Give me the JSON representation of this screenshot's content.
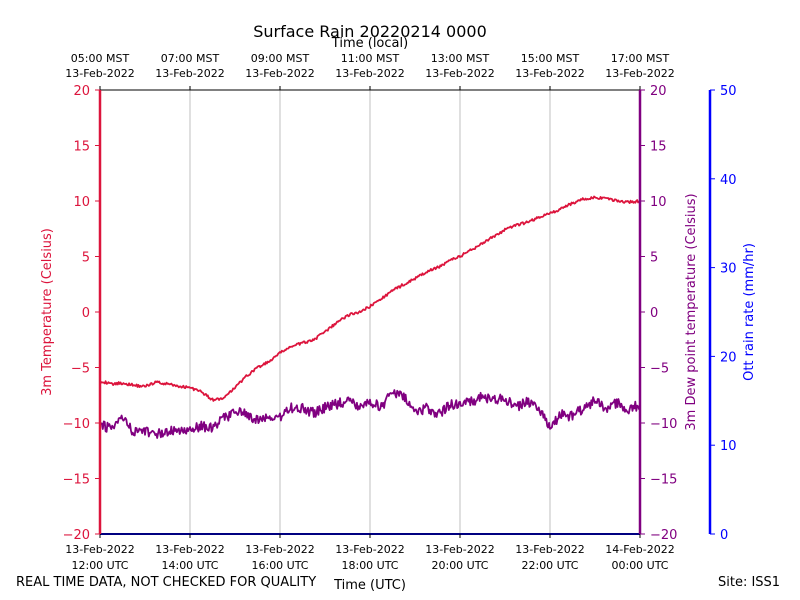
{
  "chart_data": {
    "type": "line",
    "title": "Surface Rain 20220214 0000",
    "top_axis_label": "Time (local)",
    "xlabel": "Time (UTC)",
    "x_range_hours": [
      12,
      24
    ],
    "x_ticks": [
      12,
      14,
      16,
      18,
      20,
      22,
      24
    ],
    "x_tick_labels_utc": [
      [
        "13-Feb-2022",
        "12:00 UTC"
      ],
      [
        "13-Feb-2022",
        "14:00 UTC"
      ],
      [
        "13-Feb-2022",
        "16:00 UTC"
      ],
      [
        "13-Feb-2022",
        "18:00 UTC"
      ],
      [
        "13-Feb-2022",
        "20:00 UTC"
      ],
      [
        "13-Feb-2022",
        "22:00 UTC"
      ],
      [
        "14-Feb-2022",
        "00:00 UTC"
      ]
    ],
    "x_tick_labels_local": [
      [
        "05:00 MST",
        "13-Feb-2022"
      ],
      [
        "07:00 MST",
        "13-Feb-2022"
      ],
      [
        "09:00 MST",
        "13-Feb-2022"
      ],
      [
        "11:00 MST",
        "13-Feb-2022"
      ],
      [
        "13:00 MST",
        "13-Feb-2022"
      ],
      [
        "15:00 MST",
        "13-Feb-2022"
      ],
      [
        "17:00 MST",
        "13-Feb-2022"
      ]
    ],
    "y_left": {
      "label": "3m Temperature (Celsius)",
      "ylim": [
        -20,
        20
      ],
      "ticks": [
        -20,
        -15,
        -10,
        -5,
        0,
        5,
        10,
        15,
        20
      ],
      "tick_labels": [
        "−20",
        "−15",
        "−10",
        "−5",
        "0",
        "5",
        "10",
        "15",
        "20"
      ],
      "color": "#dc143c"
    },
    "y_right1": {
      "label": "3m Dew point temperature (Celsius)",
      "ylim": [
        -20,
        20
      ],
      "ticks": [
        -20,
        -15,
        -10,
        -5,
        0,
        5,
        10,
        15,
        20
      ],
      "tick_labels": [
        "−20",
        "−15",
        "−10",
        "−5",
        "0",
        "5",
        "10",
        "15",
        "20"
      ],
      "color": "#800080"
    },
    "y_right2": {
      "label": "Ott rain rate (mm/hr)",
      "ylim": [
        0,
        50
      ],
      "ticks": [
        0,
        10,
        20,
        30,
        40,
        50
      ],
      "tick_labels": [
        "0",
        "10",
        "20",
        "30",
        "40",
        "50"
      ],
      "color": "#0000ff"
    },
    "grid": "vertical",
    "series": [
      {
        "name": "3m Temperature",
        "color": "#dc143c",
        "x": [
          12.0,
          12.25,
          12.5,
          12.75,
          13.0,
          13.25,
          13.5,
          13.75,
          14.0,
          14.25,
          14.5,
          14.75,
          15.0,
          15.25,
          15.5,
          15.75,
          16.0,
          16.25,
          16.5,
          16.75,
          17.0,
          17.25,
          17.5,
          17.75,
          18.0,
          18.25,
          18.5,
          18.75,
          19.0,
          19.25,
          19.5,
          19.75,
          20.0,
          20.25,
          20.5,
          20.75,
          21.0,
          21.25,
          21.5,
          21.75,
          22.0,
          22.25,
          22.5,
          22.75,
          23.0,
          23.25,
          23.5,
          23.75,
          24.0
        ],
        "values": [
          -6.2,
          -6.5,
          -6.4,
          -6.6,
          -6.7,
          -6.3,
          -6.5,
          -6.7,
          -6.8,
          -7.2,
          -7.9,
          -7.8,
          -6.8,
          -5.8,
          -5.0,
          -4.5,
          -3.7,
          -3.1,
          -2.8,
          -2.5,
          -1.8,
          -1.0,
          -0.3,
          0.0,
          0.5,
          1.2,
          1.9,
          2.5,
          3.0,
          3.6,
          4.0,
          4.6,
          5.0,
          5.6,
          6.2,
          6.8,
          7.4,
          7.8,
          8.1,
          8.5,
          8.9,
          9.3,
          9.8,
          10.2,
          10.3,
          10.2,
          10.0,
          9.9,
          10.0
        ]
      },
      {
        "name": "3m Dew point temperature",
        "color": "#800080",
        "x": [
          12.0,
          12.25,
          12.5,
          12.75,
          13.0,
          13.25,
          13.5,
          13.75,
          14.0,
          14.25,
          14.5,
          14.75,
          15.0,
          15.25,
          15.5,
          15.75,
          16.0,
          16.25,
          16.5,
          16.75,
          17.0,
          17.25,
          17.5,
          17.75,
          18.0,
          18.25,
          18.5,
          18.75,
          19.0,
          19.25,
          19.5,
          19.75,
          20.0,
          20.25,
          20.5,
          20.75,
          21.0,
          21.25,
          21.5,
          21.75,
          22.0,
          22.25,
          22.5,
          22.75,
          23.0,
          23.25,
          23.5,
          23.75,
          24.0
        ],
        "values": [
          -10.2,
          -10.5,
          -9.6,
          -10.8,
          -10.7,
          -11.0,
          -10.8,
          -10.6,
          -10.5,
          -10.3,
          -10.4,
          -9.6,
          -9.0,
          -9.2,
          -9.8,
          -9.5,
          -9.5,
          -8.6,
          -8.7,
          -9.1,
          -8.6,
          -8.3,
          -8.0,
          -8.4,
          -8.1,
          -8.6,
          -7.2,
          -7.6,
          -8.9,
          -8.7,
          -9.3,
          -8.4,
          -8.2,
          -8.1,
          -7.6,
          -7.9,
          -7.8,
          -8.6,
          -8.1,
          -8.9,
          -10.3,
          -9.2,
          -9.4,
          -8.6,
          -8.0,
          -8.6,
          -8.2,
          -8.8,
          -8.3
        ]
      },
      {
        "name": "Ott rain rate",
        "color": "#0000ff",
        "x": [
          12.0,
          24.0
        ],
        "values": [
          0.0,
          0.0
        ]
      }
    ]
  },
  "footer": {
    "left_note": "REAL TIME DATA, NOT CHECKED FOR QUALITY",
    "site": "Site: ISS1"
  }
}
